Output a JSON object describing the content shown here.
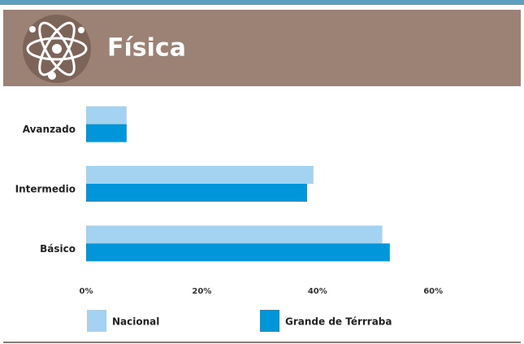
{
  "chart_data": {
    "type": "bar",
    "orientation": "horizontal",
    "title": "Física",
    "categories": [
      "Avanzado",
      "Intermedio",
      "Básico"
    ],
    "series": [
      {
        "name": "Nacional",
        "color": "#a3d3f0",
        "values": [
          7,
          39.3,
          51.2
        ]
      },
      {
        "name": "Grande de Térrraba",
        "color": "#0096d9",
        "values": [
          7,
          38.2,
          52.5
        ]
      }
    ],
    "xlim": [
      0,
      75
    ],
    "xticks": [
      {
        "value": 0,
        "label": "0%"
      },
      {
        "value": 20,
        "label": "20%"
      },
      {
        "value": 40,
        "label": "40%"
      },
      {
        "value": 60,
        "label": "60%"
      }
    ],
    "grid": false
  }
}
